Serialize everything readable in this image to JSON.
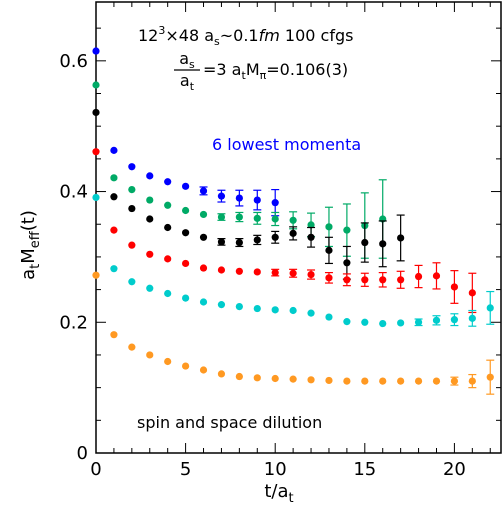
{
  "chart_data": {
    "type": "scatter",
    "xlabel_main": "t/a",
    "xlabel_sub": "t",
    "ylabel_main_a": "a",
    "ylabel_sub_t": "t",
    "ylabel_main_M": "M",
    "ylabel_sub_eff": "eff",
    "ylabel_tail": "(t)",
    "xlim": [
      0,
      22.6
    ],
    "ylim": [
      0,
      0.69
    ],
    "x_ticks": [
      0,
      5,
      10,
      15,
      20
    ],
    "x_tick_labels": [
      "0",
      "5",
      "10",
      "15",
      "20"
    ],
    "y_ticks": [
      0,
      0.2,
      0.4,
      0.6
    ],
    "y_tick_labels": [
      "0",
      "0.2",
      "0.4",
      "0.6"
    ],
    "annotations": {
      "line1_a": "12",
      "line1_sup": "3",
      "line1_b": "×48  a",
      "line1_sub": "s",
      "line1_c": "~0.1",
      "line1_fm": "fm",
      "line1_d": "  100 cfgs",
      "frac_num_a": "a",
      "frac_num_sub": "s",
      "frac_den_a": "a",
      "frac_den_sub": "t",
      "line2_a": "=3  a",
      "line2_sub_t": "t",
      "line2_b": "M",
      "line2_sub_pi": "π",
      "line2_c": "=0.106(3)",
      "momenta_label": "6 lowest momenta",
      "dilution_label": "spin and space dilution"
    },
    "series": [
      {
        "color": "#0000ff",
        "x": [
          0,
          1,
          2,
          3,
          4,
          5,
          6,
          7,
          8,
          9,
          10
        ],
        "y": [
          0.615,
          0.463,
          0.438,
          0.424,
          0.415,
          0.408,
          0.401,
          0.393,
          0.39,
          0.387,
          0.383
        ],
        "err": [
          0.002,
          0.002,
          0.002,
          0.003,
          0.003,
          0.004,
          0.006,
          0.009,
          0.012,
          0.015,
          0.02
        ]
      },
      {
        "color": "#00aa66",
        "x": [
          0,
          1,
          2,
          3,
          4,
          5,
          6,
          7,
          8,
          9,
          10,
          11,
          12,
          13,
          14,
          15,
          16
        ],
        "y": [
          0.563,
          0.421,
          0.403,
          0.387,
          0.379,
          0.371,
          0.365,
          0.361,
          0.361,
          0.359,
          0.358,
          0.356,
          0.349,
          0.346,
          0.341,
          0.348,
          0.358
        ],
        "err": [
          0.002,
          0.002,
          0.002,
          0.002,
          0.003,
          0.003,
          0.004,
          0.005,
          0.007,
          0.009,
          0.01,
          0.013,
          0.018,
          0.03,
          0.04,
          0.05,
          0.06
        ]
      },
      {
        "color": "#000000",
        "x": [
          0,
          1,
          2,
          3,
          4,
          5,
          6,
          7,
          8,
          9,
          10,
          11,
          12,
          13,
          14,
          15,
          16,
          17
        ],
        "y": [
          0.521,
          0.392,
          0.374,
          0.358,
          0.345,
          0.337,
          0.33,
          0.323,
          0.322,
          0.326,
          0.33,
          0.336,
          0.33,
          0.31,
          0.291,
          0.322,
          0.32,
          0.329
        ],
        "err": [
          0.002,
          0.002,
          0.002,
          0.002,
          0.003,
          0.003,
          0.004,
          0.005,
          0.006,
          0.007,
          0.009,
          0.01,
          0.015,
          0.02,
          0.025,
          0.03,
          0.035,
          0.035
        ]
      },
      {
        "color": "#ff0000",
        "x": [
          0,
          1,
          2,
          3,
          4,
          5,
          6,
          7,
          8,
          9,
          10,
          11,
          12,
          13,
          14,
          15,
          16,
          17,
          18,
          19,
          20,
          21
        ],
        "y": [
          0.461,
          0.341,
          0.318,
          0.304,
          0.297,
          0.29,
          0.283,
          0.28,
          0.278,
          0.277,
          0.276,
          0.275,
          0.273,
          0.268,
          0.265,
          0.265,
          0.265,
          0.265,
          0.27,
          0.271,
          0.254,
          0.245
        ],
        "err": [
          0.002,
          0.002,
          0.002,
          0.002,
          0.002,
          0.003,
          0.003,
          0.003,
          0.004,
          0.004,
          0.005,
          0.006,
          0.007,
          0.008,
          0.009,
          0.01,
          0.011,
          0.013,
          0.017,
          0.02,
          0.025,
          0.03
        ]
      },
      {
        "color": "#00cccc",
        "x": [
          0,
          1,
          2,
          3,
          4,
          5,
          6,
          7,
          8,
          9,
          10,
          11,
          12,
          13,
          14,
          15,
          16,
          17,
          18,
          19,
          20,
          21,
          22
        ],
        "y": [
          0.391,
          0.282,
          0.262,
          0.252,
          0.244,
          0.237,
          0.231,
          0.227,
          0.224,
          0.221,
          0.219,
          0.218,
          0.214,
          0.208,
          0.201,
          0.2,
          0.198,
          0.199,
          0.2,
          0.203,
          0.204,
          0.206,
          0.222
        ],
        "err": [
          0.002,
          0.002,
          0.002,
          0.002,
          0.002,
          0.002,
          0.002,
          0.002,
          0.002,
          0.002,
          0.002,
          0.002,
          0.003,
          0.003,
          0.003,
          0.003,
          0.004,
          0.004,
          0.005,
          0.007,
          0.009,
          0.012,
          0.025
        ]
      },
      {
        "color": "#ff9922",
        "x": [
          0,
          1,
          2,
          3,
          4,
          5,
          6,
          7,
          8,
          9,
          10,
          11,
          12,
          13,
          14,
          15,
          16,
          17,
          18,
          19,
          20,
          21,
          22
        ],
        "y": [
          0.272,
          0.181,
          0.162,
          0.15,
          0.14,
          0.133,
          0.127,
          0.121,
          0.117,
          0.115,
          0.114,
          0.113,
          0.112,
          0.111,
          0.11,
          0.11,
          0.11,
          0.11,
          0.11,
          0.11,
          0.11,
          0.11,
          0.116
        ],
        "err": [
          0.002,
          0.002,
          0.002,
          0.002,
          0.002,
          0.002,
          0.002,
          0.002,
          0.002,
          0.002,
          0.002,
          0.002,
          0.002,
          0.002,
          0.002,
          0.002,
          0.002,
          0.002,
          0.003,
          0.004,
          0.006,
          0.01,
          0.026
        ]
      }
    ]
  }
}
